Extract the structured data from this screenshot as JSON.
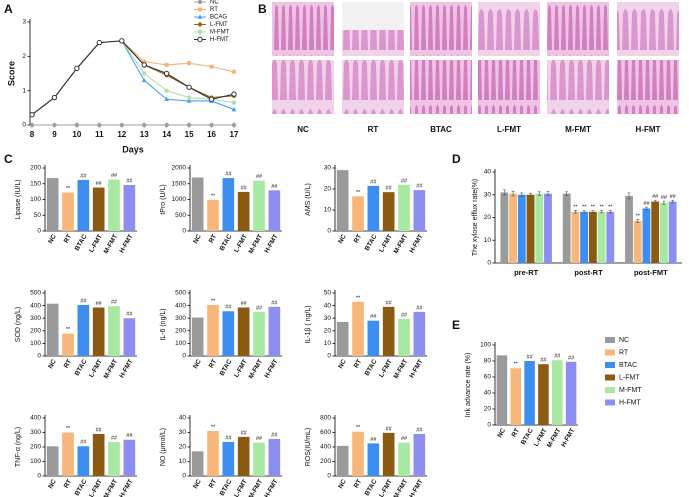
{
  "panels": [
    "A",
    "B",
    "C",
    "D",
    "E"
  ],
  "histology": {
    "labels": [
      "NC",
      "RT",
      "BTAC",
      "L-FMT",
      "M-FMT",
      "H-FMT"
    ]
  },
  "chart_data": [
    {
      "type": "line",
      "xlabel": "Days",
      "ylabel": "Score",
      "x": [
        8,
        9,
        10,
        11,
        12,
        13,
        14,
        15,
        16,
        17
      ],
      "xlim": [
        8,
        17
      ],
      "xticks": [
        8,
        9,
        10,
        11,
        12,
        13,
        14,
        15,
        16,
        17
      ],
      "ylim": [
        0,
        3
      ],
      "yticks": [
        0,
        1,
        2,
        3
      ],
      "legend": "upper right",
      "series": [
        {
          "name": "NC",
          "color": "#9e9e9e",
          "marker": "circle",
          "values": [
            0,
            0,
            0,
            0,
            0,
            0,
            0,
            0,
            0,
            0
          ]
        },
        {
          "name": "RT",
          "color": "#f5b27a",
          "marker": "square",
          "values": [
            0.3,
            0.8,
            1.65,
            2.4,
            2.45,
            1.85,
            1.75,
            1.8,
            1.7,
            1.55
          ]
        },
        {
          "name": "BCAG",
          "color": "#4a9ff5",
          "marker": "triangle",
          "values": [
            0.3,
            0.8,
            1.65,
            2.4,
            2.45,
            1.3,
            0.75,
            0.7,
            0.7,
            0.45
          ]
        },
        {
          "name": "L-FMT",
          "color": "#9b6a1c",
          "marker": "circle",
          "values": [
            0.3,
            0.8,
            1.65,
            2.4,
            2.45,
            1.75,
            1.45,
            1.1,
            0.8,
            0.85
          ]
        },
        {
          "name": "M-FMT",
          "color": "#a9e3a5",
          "marker": "circle",
          "values": [
            0.3,
            0.8,
            1.65,
            2.4,
            2.45,
            1.5,
            1.0,
            0.8,
            0.75,
            0.65
          ]
        },
        {
          "name": "H-FMT",
          "color": "#333333",
          "marker": "open-circle",
          "values": [
            0.3,
            0.8,
            1.65,
            2.4,
            2.45,
            1.75,
            1.5,
            1.1,
            0.75,
            0.9
          ]
        }
      ]
    },
    {
      "type": "bar",
      "ylabel": "Lipase (IU/L)",
      "categories": [
        "NC",
        "RT",
        "BTAC",
        "L-FMT",
        "M-FMT",
        "H-FMT"
      ],
      "values": [
        168,
        122,
        162,
        138,
        163,
        146
      ],
      "annotations": [
        null,
        "**",
        "##",
        "##",
        "##",
        "##"
      ],
      "colors": [
        "#9a9a9a",
        "#f7b77b",
        "#3d8ef0",
        "#8b5a13",
        "#a7e8a3",
        "#8c8ff0"
      ],
      "ylim": [
        0,
        200
      ],
      "yticks": [
        0,
        50,
        100,
        150,
        200
      ]
    },
    {
      "type": "bar",
      "ylabel": "tPro (U/L)",
      "categories": [
        "NC",
        "RT",
        "BTAC",
        "L-FMT",
        "M-FMT",
        "H-FMT"
      ],
      "values": [
        1700,
        990,
        1680,
        1240,
        1600,
        1290
      ],
      "annotations": [
        null,
        "**",
        "##",
        "##",
        "##",
        "##"
      ],
      "colors": [
        "#9a9a9a",
        "#f7b77b",
        "#3d8ef0",
        "#8b5a13",
        "#a7e8a3",
        "#8c8ff0"
      ],
      "ylim": [
        0,
        2000
      ],
      "yticks": [
        0,
        500,
        1000,
        1500,
        2000
      ]
    },
    {
      "type": "bar",
      "ylabel": "AMS (U/L)",
      "categories": [
        "NC",
        "RT",
        "BTAC",
        "L-FMT",
        "M-FMT",
        "H-FMT"
      ],
      "values": [
        29,
        16.5,
        21.5,
        18.5,
        22,
        19.5
      ],
      "annotations": [
        null,
        "**",
        "##",
        "##",
        "##",
        "##"
      ],
      "colors": [
        "#9a9a9a",
        "#f7b77b",
        "#3d8ef0",
        "#8b5a13",
        "#a7e8a3",
        "#8c8ff0"
      ],
      "ylim": [
        0,
        30
      ],
      "yticks": [
        0,
        10,
        20,
        30
      ]
    },
    {
      "type": "bar",
      "ylabel": "SOD (ng/L)",
      "categories": [
        "NC",
        "RT",
        "BTAC",
        "L-FMT",
        "M-FMT",
        "H-FMT"
      ],
      "values": [
        415,
        178,
        405,
        385,
        395,
        300
      ],
      "annotations": [
        null,
        "**",
        "##",
        "##",
        "##",
        "##"
      ],
      "colors": [
        "#9a9a9a",
        "#f7b77b",
        "#3d8ef0",
        "#8b5a13",
        "#a7e8a3",
        "#8c8ff0"
      ],
      "ylim": [
        0,
        500
      ],
      "yticks": [
        0,
        100,
        200,
        300,
        400,
        500
      ]
    },
    {
      "type": "bar",
      "ylabel": "IL-6 (ng/L)",
      "categories": [
        "NC",
        "RT",
        "BTAC",
        "L-FMT",
        "M-FMT",
        "H-FMT"
      ],
      "values": [
        305,
        405,
        355,
        385,
        350,
        390
      ],
      "annotations": [
        null,
        "**",
        "##",
        "##",
        "##",
        "##"
      ],
      "colors": [
        "#9a9a9a",
        "#f7b77b",
        "#3d8ef0",
        "#8b5a13",
        "#a7e8a3",
        "#8c8ff0"
      ],
      "ylim": [
        0,
        500
      ],
      "yticks": [
        0,
        100,
        200,
        300,
        400,
        500
      ]
    },
    {
      "type": "bar",
      "ylabel": "IL-1β ( ng/L)",
      "categories": [
        "NC",
        "RT",
        "BTAC",
        "L-FMT",
        "M-FMT",
        "H-FMT"
      ],
      "values": [
        27,
        43,
        28,
        39,
        29.5,
        35
      ],
      "annotations": [
        null,
        "**",
        "##",
        "##",
        "##",
        "##"
      ],
      "colors": [
        "#9a9a9a",
        "#f7b77b",
        "#3d8ef0",
        "#8b5a13",
        "#a7e8a3",
        "#8c8ff0"
      ],
      "ylim": [
        0,
        50
      ],
      "yticks": [
        0,
        10,
        20,
        30,
        40,
        50
      ]
    },
    {
      "type": "bar",
      "ylabel": "TNF-α (ng/L)",
      "categories": [
        "NC",
        "RT",
        "BTAC",
        "L-FMT",
        "M-FMT",
        "H-FMT"
      ],
      "values": [
        205,
        300,
        205,
        290,
        235,
        250
      ],
      "annotations": [
        null,
        "**",
        "##",
        "##",
        "##",
        "##"
      ],
      "colors": [
        "#9a9a9a",
        "#f7b77b",
        "#3d8ef0",
        "#8b5a13",
        "#a7e8a3",
        "#8c8ff0"
      ],
      "ylim": [
        0,
        400
      ],
      "yticks": [
        0,
        100,
        200,
        300,
        400
      ]
    },
    {
      "type": "bar",
      "ylabel": "NO (μmol/L)",
      "categories": [
        "NC",
        "RT",
        "BTAC",
        "L-FMT",
        "M-FMT",
        "H-FMT"
      ],
      "values": [
        17,
        31,
        23.5,
        27,
        23,
        25.5
      ],
      "annotations": [
        null,
        "**",
        "##",
        "##",
        "##",
        "##"
      ],
      "colors": [
        "#9a9a9a",
        "#f7b77b",
        "#3d8ef0",
        "#8b5a13",
        "#a7e8a3",
        "#8c8ff0"
      ],
      "ylim": [
        0,
        40
      ],
      "yticks": [
        0,
        10,
        20,
        30,
        40
      ]
    },
    {
      "type": "bar",
      "ylabel": "ROS(IU/mL)",
      "categories": [
        "NC",
        "RT",
        "BTAC",
        "L-FMT",
        "M-FMT",
        "H-FMT"
      ],
      "values": [
        415,
        610,
        450,
        595,
        460,
        580
      ],
      "annotations": [
        null,
        "**",
        "##",
        "##",
        "##",
        "##"
      ],
      "colors": [
        "#9a9a9a",
        "#f7b77b",
        "#3d8ef0",
        "#8b5a13",
        "#a7e8a3",
        "#8c8ff0"
      ],
      "ylim": [
        0,
        800
      ],
      "yticks": [
        0,
        200,
        400,
        600,
        800
      ]
    },
    {
      "type": "grouped_bar",
      "ylabel": "The xylose efflux rate(%)",
      "categories": [
        "pre-RT",
        "post-RT",
        "post-FMT"
      ],
      "ylim": [
        0,
        40
      ],
      "yticks": [
        0,
        10,
        20,
        30,
        40
      ],
      "series": [
        {
          "color": "#9a9a9a",
          "values": [
            31,
            30.5,
            29.5
          ],
          "errors": [
            1.2,
            0.8,
            1.3
          ],
          "annotations": [
            null,
            null,
            null
          ]
        },
        {
          "color": "#f7b77b",
          "values": [
            30.5,
            22.5,
            18.5
          ],
          "errors": [
            1.0,
            0.6,
            0.6
          ],
          "annotations": [
            null,
            "**",
            "**"
          ]
        },
        {
          "color": "#3d8ef0",
          "values": [
            30,
            22.5,
            24
          ],
          "errors": [
            0.8,
            0.5,
            0.6
          ],
          "annotations": [
            null,
            "**",
            "##"
          ]
        },
        {
          "color": "#8b5a13",
          "values": [
            30,
            22.5,
            27
          ],
          "errors": [
            0.7,
            0.5,
            0.6
          ],
          "annotations": [
            null,
            "**",
            "##"
          ]
        },
        {
          "color": "#a7e8a3",
          "values": [
            30.5,
            22.5,
            26.5
          ],
          "errors": [
            0.8,
            0.5,
            0.7
          ],
          "annotations": [
            null,
            "**",
            "##"
          ]
        },
        {
          "color": "#8c8ff0",
          "values": [
            30.5,
            22.5,
            27
          ],
          "errors": [
            0.9,
            0.5,
            0.6
          ],
          "annotations": [
            null,
            "**",
            "##"
          ]
        }
      ]
    },
    {
      "type": "bar",
      "ylabel": "Ink advance rate (%)",
      "categories": [
        "NC",
        "RT",
        "BTAC",
        "L-FMT",
        "M-FMT",
        "H-FMT"
      ],
      "values": [
        87,
        71,
        80,
        76,
        81,
        79
      ],
      "annotations": [
        null,
        "**",
        "##",
        "##",
        "##",
        "##"
      ],
      "colors": [
        "#9a9a9a",
        "#f7b77b",
        "#3d8ef0",
        "#8b5a13",
        "#a7e8a3",
        "#8c8ff0"
      ],
      "ylim": [
        0,
        100
      ],
      "yticks": [
        0,
        20,
        40,
        60,
        80,
        100
      ],
      "legend": "right"
    }
  ]
}
